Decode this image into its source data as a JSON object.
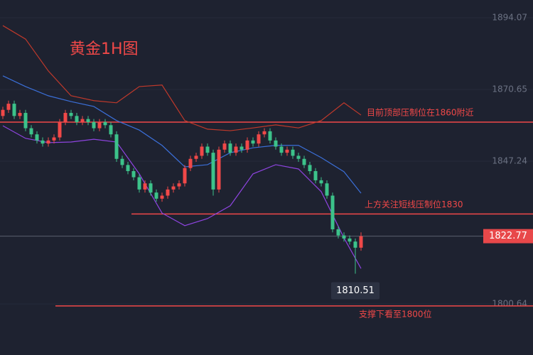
{
  "chart_data": {
    "type": "candlestick",
    "title": "黄金1H图",
    "ylim": [
      1783.97,
      1899.86
    ],
    "yticks": [
      1800.64,
      1847.24,
      1870.65,
      1894.07
    ],
    "up_color": "#f04848",
    "down_color": "#3cc28a",
    "open": [
      1862,
      1864,
      1866,
      1862,
      1863,
      1858,
      1856,
      1854,
      1853,
      1854,
      1855,
      1860,
      1863,
      1862,
      1860,
      1861,
      1860,
      1858,
      1860,
      1859,
      1856,
      1848,
      1846,
      1844,
      1842,
      1838,
      1840,
      1837,
      1835,
      1836,
      1838,
      1839,
      1840,
      1845,
      1848,
      1849,
      1852,
      1850,
      1838,
      1851,
      1853,
      1850,
      1852,
      1851,
      1854,
      1853,
      1856,
      1857,
      1854,
      1852,
      1850,
      1851,
      1849,
      1848,
      1846,
      1844,
      1841,
      1840,
      1836,
      1825,
      1823,
      1822,
      1821,
      1819
    ],
    "high": [
      1865,
      1867,
      1867,
      1864,
      1864,
      1859,
      1857,
      1855,
      1855,
      1856,
      1861,
      1864,
      1864,
      1863,
      1862,
      1862,
      1861,
      1861,
      1861,
      1860,
      1857,
      1849,
      1847,
      1845,
      1843,
      1841,
      1841,
      1838,
      1837,
      1839,
      1840,
      1841,
      1846,
      1849,
      1850,
      1853,
      1853,
      1851,
      1852,
      1854,
      1854,
      1853,
      1853,
      1855,
      1855,
      1857,
      1858,
      1858,
      1855,
      1853,
      1852,
      1852,
      1850,
      1849,
      1847,
      1845,
      1842,
      1841,
      1837,
      1826,
      1824,
      1823,
      1822,
      1824
    ],
    "low": [
      1861,
      1863,
      1861,
      1861,
      1857,
      1855,
      1853,
      1852,
      1852,
      1853,
      1854,
      1859,
      1861,
      1859,
      1859,
      1859,
      1857,
      1857,
      1858,
      1855,
      1847,
      1845,
      1843,
      1841,
      1837,
      1837,
      1836,
      1834,
      1834,
      1835,
      1837,
      1838,
      1839,
      1844,
      1847,
      1848,
      1849,
      1836,
      1837,
      1850,
      1849,
      1849,
      1850,
      1850,
      1852,
      1852,
      1855,
      1853,
      1851,
      1849,
      1849,
      1848,
      1847,
      1845,
      1843,
      1840,
      1839,
      1835,
      1824,
      1822,
      1821,
      1820,
      1810.51,
      1818
    ],
    "close": [
      1864,
      1866,
      1862,
      1863,
      1858,
      1856,
      1854,
      1853,
      1854,
      1855,
      1860,
      1863,
      1862,
      1860,
      1861,
      1860,
      1858,
      1860,
      1859,
      1856,
      1848,
      1846,
      1844,
      1842,
      1838,
      1840,
      1837,
      1835,
      1836,
      1838,
      1839,
      1840,
      1845,
      1848,
      1849,
      1852,
      1850,
      1838,
      1851,
      1853,
      1850,
      1852,
      1851,
      1854,
      1853,
      1856,
      1857,
      1854,
      1852,
      1850,
      1851,
      1849,
      1848,
      1846,
      1844,
      1841,
      1840,
      1836,
      1825,
      1823,
      1822,
      1821,
      1819,
      1822.77
    ],
    "bands": [
      {
        "color": "#c0392b",
        "x": [
          0,
          4,
          8,
          12,
          16,
          20,
          24,
          28,
          32,
          36,
          40,
          44,
          48,
          52,
          56,
          60,
          63
        ],
        "values": [
          1891.5,
          1887.1,
          1876.7,
          1868.6,
          1867.0,
          1866.3,
          1871.6,
          1872.1,
          1860.5,
          1857.7,
          1857.2,
          1858.1,
          1859.1,
          1858.1,
          1860.5,
          1866.3,
          1862.3
        ]
      },
      {
        "color": "#3b6fd8",
        "x": [
          0,
          4,
          8,
          12,
          16,
          20,
          24,
          28,
          32,
          36,
          40,
          44,
          48,
          52,
          56,
          60,
          63
        ],
        "values": [
          1875.1,
          1871.6,
          1868.6,
          1866.7,
          1865.1,
          1860.5,
          1857.4,
          1852.4,
          1845.4,
          1846.1,
          1850.0,
          1851.6,
          1852.4,
          1852.4,
          1848.4,
          1843.8,
          1836.8
        ]
      },
      {
        "color": "#8e44e0",
        "x": [
          0,
          4,
          8,
          12,
          16,
          20,
          24,
          28,
          32,
          36,
          40,
          44,
          48,
          52,
          56,
          60,
          63
        ],
        "values": [
          1858.8,
          1854.7,
          1853.3,
          1853.5,
          1854.4,
          1853.5,
          1843.1,
          1830.3,
          1826.2,
          1828.5,
          1832.7,
          1843.1,
          1846.1,
          1844.7,
          1837.3,
          1822.2,
          1812.2
        ]
      }
    ],
    "levels": [
      {
        "value": 1860,
        "label": "目前顶部压制位在1860附近"
      },
      {
        "value": 1830,
        "label": "上方关注短线压制位1830"
      },
      {
        "value": 1800,
        "label": "支撑下看至1800位"
      }
    ]
  }
}
